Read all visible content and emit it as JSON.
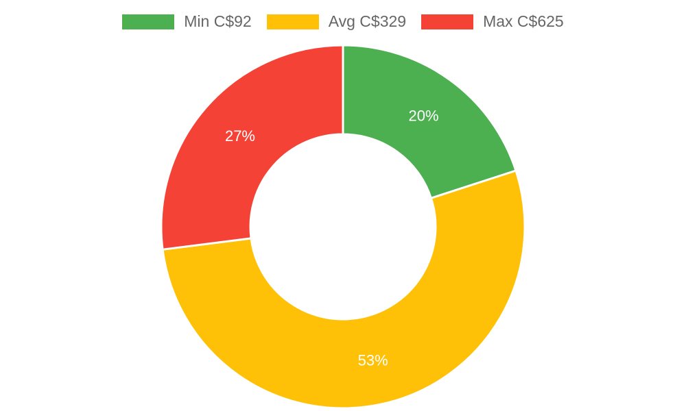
{
  "chart_data": {
    "type": "pie",
    "variant": "doughnut",
    "legend_position": "top",
    "series": [
      {
        "name": "Min C$92",
        "value": 20,
        "label": "20%",
        "color": "#4caf50"
      },
      {
        "name": "Avg C$329",
        "value": 53,
        "label": "53%",
        "color": "#ffc107"
      },
      {
        "name": "Max C$625",
        "value": 27,
        "label": "27%",
        "color": "#f44336"
      }
    ]
  }
}
